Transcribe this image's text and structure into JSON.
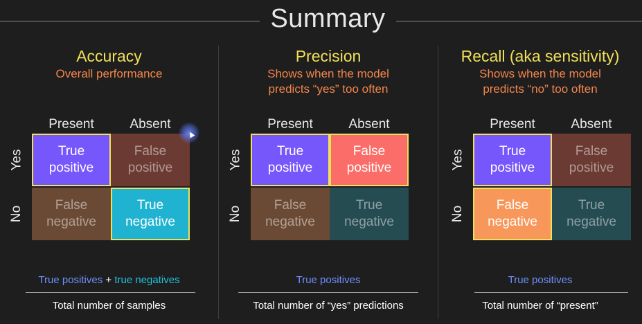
{
  "title": "Summary",
  "colors": {
    "tp": "#7557fb",
    "tn": "#1fb3d1",
    "fp": "#fb6d68",
    "fn": "#f79759",
    "fp_dim": "#6b3b33",
    "fn_dim": "#6b4a35",
    "tn_dim": "#254c51",
    "title": "#f1e05a",
    "subtitle": "#f4854b"
  },
  "panels": [
    {
      "title": "Accuracy",
      "subtitle_lines": [
        "Overall performance"
      ],
      "col_headers": [
        "Present",
        "Absent"
      ],
      "row_headers": [
        "Yes",
        "No"
      ],
      "cells": {
        "tp": {
          "line1": "True",
          "line2": "positive"
        },
        "fp": {
          "line1": "False",
          "line2": "positive"
        },
        "fn": {
          "line1": "False",
          "line2": "negative"
        },
        "tn": {
          "line1": "True",
          "line2": "negative"
        }
      },
      "formula": {
        "numerator_a": "True positives",
        "numerator_op": " + ",
        "numerator_b": "true negatives",
        "denominator": "Total number of samples"
      }
    },
    {
      "title": "Precision",
      "subtitle_lines": [
        "Shows when the model",
        "predicts “yes” too often"
      ],
      "col_headers": [
        "Present",
        "Absent"
      ],
      "row_headers": [
        "Yes",
        "No"
      ],
      "cells": {
        "tp": {
          "line1": "True",
          "line2": "positive"
        },
        "fp": {
          "line1": "False",
          "line2": "positive"
        },
        "fn": {
          "line1": "False",
          "line2": "negative"
        },
        "tn": {
          "line1": "True",
          "line2": "negative"
        }
      },
      "formula": {
        "numerator_a": "True positives",
        "denominator": "Total number of “yes” predictions"
      }
    },
    {
      "title": "Recall (aka sensitivity)",
      "subtitle_lines": [
        "Shows when the model",
        "predicts “no” too often"
      ],
      "col_headers": [
        "Present",
        "Absent"
      ],
      "row_headers": [
        "Yes",
        "No"
      ],
      "cells": {
        "tp": {
          "line1": "True",
          "line2": "positive"
        },
        "fp": {
          "line1": "False",
          "line2": "positive"
        },
        "fn": {
          "line1": "False",
          "line2": "negative"
        },
        "tn": {
          "line1": "True",
          "line2": "negative"
        }
      },
      "formula": {
        "numerator_a": "True positives",
        "denominator": "Total number of “present”"
      }
    }
  ]
}
